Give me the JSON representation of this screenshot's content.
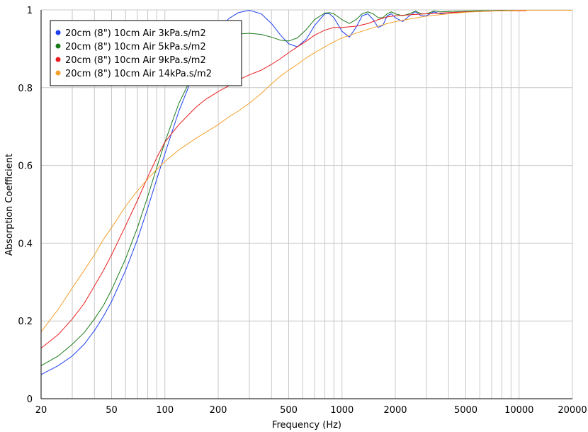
{
  "chart_data": {
    "type": "line",
    "xlabel": "Frequency (Hz)",
    "ylabel": "Absorption Coefficient",
    "x_scale": "log",
    "xlim": [
      20,
      20000
    ],
    "ylim": [
      0,
      1
    ],
    "x_ticks": [
      20,
      50,
      100,
      200,
      500,
      1000,
      2000,
      5000,
      10000,
      20000
    ],
    "x_tick_labels": [
      "20",
      "50",
      "100",
      "200",
      "500",
      "1000",
      "2000",
      "5000",
      "10000",
      "20000"
    ],
    "y_ticks": [
      0,
      0.2,
      0.4,
      0.6,
      0.8,
      1
    ],
    "y_tick_labels": [
      "0",
      "0.2",
      "0.4",
      "0.6",
      "0.8",
      "1"
    ],
    "grid": true,
    "legend_position": "top-left",
    "series": [
      {
        "name": "20cm (8\") 10cm Air 3kPa.s/m2",
        "color": "#1e3ff0",
        "x": [
          20,
          25,
          30,
          35,
          40,
          45,
          50,
          60,
          70,
          80,
          90,
          100,
          120,
          150,
          170,
          200,
          230,
          260,
          300,
          350,
          400,
          450,
          500,
          560,
          630,
          700,
          800,
          850,
          900,
          1000,
          1100,
          1200,
          1300,
          1400,
          1500,
          1600,
          1700,
          1800,
          1900,
          2000,
          2200,
          2400,
          2600,
          2800,
          3000,
          3300,
          3600,
          4000,
          5000,
          6000,
          7000,
          8000,
          10000,
          20000
        ],
        "y": [
          0.062,
          0.085,
          0.11,
          0.14,
          0.175,
          0.212,
          0.25,
          0.33,
          0.41,
          0.49,
          0.565,
          0.63,
          0.74,
          0.85,
          0.9,
          0.95,
          0.978,
          0.993,
          0.999,
          0.99,
          0.965,
          0.935,
          0.913,
          0.905,
          0.925,
          0.96,
          0.99,
          0.99,
          0.98,
          0.945,
          0.93,
          0.955,
          0.985,
          0.99,
          0.975,
          0.955,
          0.96,
          0.985,
          0.99,
          0.98,
          0.97,
          0.985,
          0.995,
          0.985,
          0.985,
          0.995,
          0.99,
          0.993,
          0.995,
          0.997,
          0.998,
          0.998,
          0.999,
          0.999
        ]
      },
      {
        "name": "20cm (8\") 10cm Air 5kPa.s/m2",
        "color": "#1a7a1a",
        "x": [
          20,
          25,
          30,
          35,
          40,
          45,
          50,
          60,
          70,
          80,
          90,
          100,
          120,
          150,
          170,
          200,
          230,
          260,
          300,
          350,
          400,
          450,
          500,
          560,
          630,
          700,
          800,
          850,
          900,
          1000,
          1100,
          1200,
          1300,
          1400,
          1500,
          1600,
          1700,
          1800,
          1900,
          2000,
          2200,
          2400,
          2600,
          2800,
          3000,
          3300,
          3600,
          4000,
          5000,
          6000,
          7000,
          8000,
          10000,
          20000
        ],
        "y": [
          0.085,
          0.11,
          0.14,
          0.17,
          0.205,
          0.24,
          0.28,
          0.36,
          0.44,
          0.52,
          0.595,
          0.66,
          0.76,
          0.85,
          0.885,
          0.915,
          0.93,
          0.938,
          0.94,
          0.937,
          0.93,
          0.922,
          0.92,
          0.928,
          0.95,
          0.975,
          0.992,
          0.993,
          0.99,
          0.975,
          0.965,
          0.975,
          0.99,
          0.995,
          0.99,
          0.98,
          0.98,
          0.99,
          0.995,
          0.99,
          0.985,
          0.99,
          0.997,
          0.99,
          0.99,
          0.997,
          0.995,
          0.996,
          0.997,
          0.998,
          0.998,
          0.999,
          0.999,
          0.999
        ]
      },
      {
        "name": "20cm (8\") 10cm Air 9kPa.s/m2",
        "color": "#ea1c1c",
        "x": [
          20,
          25,
          30,
          35,
          40,
          45,
          50,
          60,
          70,
          80,
          90,
          100,
          120,
          150,
          170,
          200,
          230,
          260,
          300,
          350,
          400,
          450,
          500,
          560,
          630,
          700,
          800,
          900,
          1000,
          1200,
          1400,
          1600,
          1800,
          2000,
          2500,
          3000,
          4000,
          5000,
          6000,
          7000,
          8000,
          10000,
          11000
        ],
        "y": [
          0.13,
          0.165,
          0.205,
          0.245,
          0.29,
          0.33,
          0.37,
          0.445,
          0.51,
          0.57,
          0.62,
          0.66,
          0.705,
          0.75,
          0.77,
          0.79,
          0.805,
          0.82,
          0.833,
          0.845,
          0.86,
          0.875,
          0.89,
          0.905,
          0.92,
          0.935,
          0.948,
          0.955,
          0.955,
          0.958,
          0.965,
          0.975,
          0.982,
          0.985,
          0.988,
          0.99,
          0.993,
          0.995,
          0.996,
          0.997,
          0.998,
          0.998,
          0.998
        ]
      },
      {
        "name": "20cm (8\") 10cm Air 14kPa.s/m2",
        "color": "#f5a02a",
        "x": [
          20,
          25,
          30,
          35,
          40,
          45,
          50,
          60,
          70,
          80,
          90,
          100,
          120,
          150,
          170,
          200,
          230,
          260,
          300,
          350,
          400,
          450,
          500,
          560,
          630,
          700,
          800,
          900,
          1000,
          1200,
          1400,
          1600,
          1800,
          2000,
          2500,
          3000,
          4000,
          5000,
          6000,
          7000,
          8000,
          10000,
          12000,
          15000,
          20000
        ],
        "y": [
          0.172,
          0.23,
          0.285,
          0.33,
          0.37,
          0.41,
          0.44,
          0.495,
          0.535,
          0.565,
          0.59,
          0.61,
          0.64,
          0.67,
          0.685,
          0.705,
          0.725,
          0.74,
          0.76,
          0.785,
          0.81,
          0.83,
          0.845,
          0.86,
          0.877,
          0.89,
          0.905,
          0.918,
          0.928,
          0.94,
          0.95,
          0.958,
          0.965,
          0.97,
          0.978,
          0.984,
          0.99,
          0.994,
          0.996,
          0.997,
          0.998,
          0.999,
          0.999,
          0.999,
          0.999
        ]
      }
    ]
  }
}
